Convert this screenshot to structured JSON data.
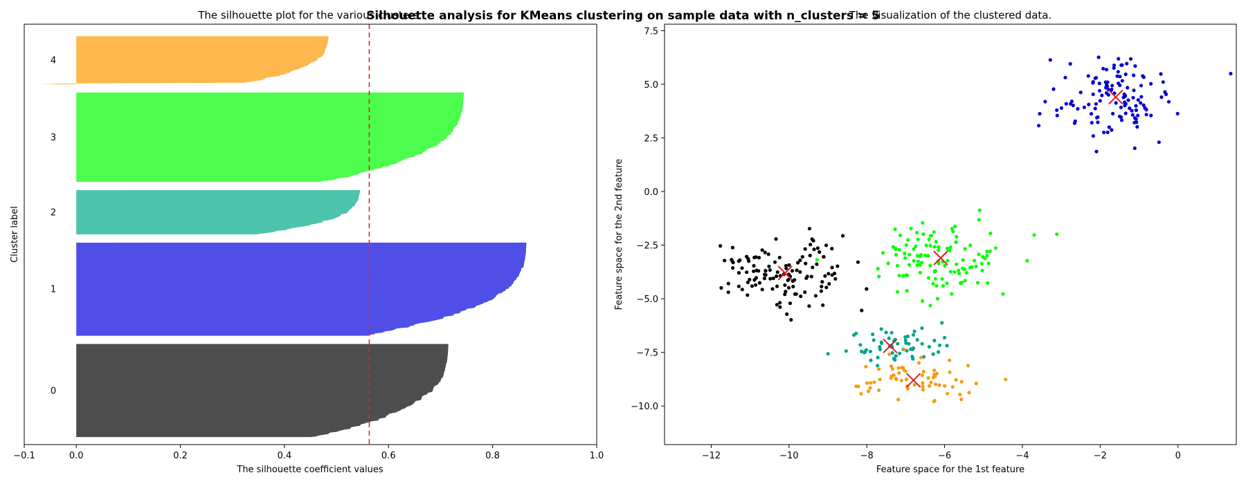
{
  "figure": {
    "suptitle": "Silhouette analysis for KMeans clustering on sample data with n_clusters = 5"
  },
  "chart_data": [
    {
      "type": "area",
      "title": "The silhouette plot for the various clusters.",
      "xlabel": "The silhouette coefficient values",
      "ylabel": "Cluster label",
      "xlim": [
        -0.1,
        1.0
      ],
      "ylim": [
        0,
        560
      ],
      "xticks": [
        -0.1,
        0.0,
        0.2,
        0.4,
        0.6,
        0.8,
        1.0
      ],
      "xtick_labels": [
        "−0.1",
        "0.0",
        "0.2",
        "0.4",
        "0.6",
        "0.8",
        "1.0"
      ],
      "yticks": [],
      "grid": false,
      "average_silhouette_score": 0.563,
      "average_line_color": "#d62728",
      "clusters": [
        {
          "label": "0",
          "y_lower": 10,
          "size": 125,
          "max": 0.715,
          "min": 0.0,
          "color": "#4d4d4d"
        },
        {
          "label": "1",
          "y_lower": 145,
          "size": 125,
          "max": 0.865,
          "min": 0.0,
          "color": "#4f4fe8"
        },
        {
          "label": "2",
          "y_lower": 280,
          "size": 60,
          "max": 0.545,
          "min": 0.0,
          "color": "#4dc4ac"
        },
        {
          "label": "3",
          "y_lower": 350,
          "size": 120,
          "max": 0.745,
          "min": 0.0,
          "color": "#4dfd4d"
        },
        {
          "label": "4",
          "y_lower": 480,
          "size": 65,
          "max": 0.485,
          "min": -0.073,
          "color": "#ffb84d"
        }
      ]
    },
    {
      "type": "scatter",
      "title": "The visualization of the clustered data.",
      "xlabel": "Feature space for the 1st feature",
      "ylabel": "Feature space for the 2nd feature",
      "xlim": [
        -13.2,
        1.5
      ],
      "ylim": [
        -11.8,
        7.8
      ],
      "xticks": [
        -12,
        -10,
        -8,
        -6,
        -4,
        -2,
        0
      ],
      "xtick_labels": [
        "−12",
        "−10",
        "−8",
        "−6",
        "−4",
        "−2",
        "0"
      ],
      "yticks": [
        7.5,
        5.0,
        2.5,
        0.0,
        -2.5,
        -5.0,
        -7.5,
        -10.0
      ],
      "ytick_labels": [
        "7.5",
        "5.0",
        "2.5",
        "0.0",
        "−2.5",
        "−5.0",
        "−7.5",
        "−10.0"
      ],
      "grid": false,
      "center_marker_color": "#e41a1c",
      "clusters": [
        {
          "label": "0",
          "center": [
            -10.1,
            -3.8
          ],
          "spread": [
            0.9,
            0.75
          ],
          "count": 125,
          "color": "#000000"
        },
        {
          "label": "1",
          "center": [
            -1.6,
            4.4
          ],
          "spread": [
            0.85,
            0.95
          ],
          "count": 125,
          "color": "#0000cc"
        },
        {
          "label": "2",
          "center": [
            -7.4,
            -7.2
          ],
          "spread": [
            0.75,
            0.5
          ],
          "count": 60,
          "color": "#00a388"
        },
        {
          "label": "3",
          "center": [
            -6.1,
            -3.1
          ],
          "spread": [
            0.85,
            0.85
          ],
          "count": 120,
          "color": "#00ff00"
        },
        {
          "label": "4",
          "center": [
            -6.8,
            -8.8
          ],
          "spread": [
            0.8,
            0.6
          ],
          "count": 65,
          "color": "#f39c12"
        }
      ]
    }
  ]
}
